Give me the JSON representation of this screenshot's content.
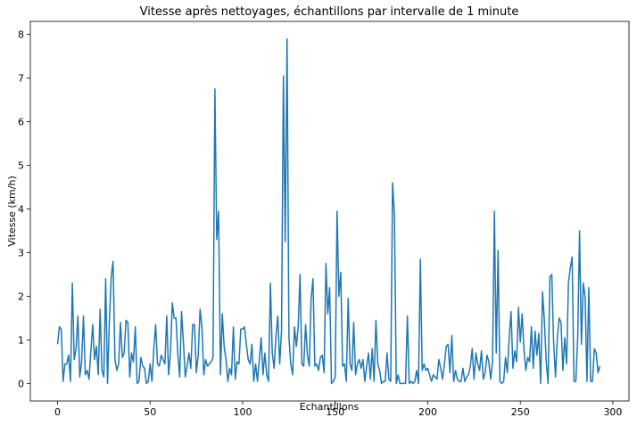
{
  "chart_data": {
    "type": "line",
    "title": "Vitesse après nettoyages, échantillons par intervalle de 1 minute",
    "xlabel": "Echantillons",
    "ylabel": "Vitesse (km/h)",
    "xlim": [
      -14.7,
      308.7
    ],
    "ylim": [
      -0.4,
      8.3
    ],
    "xticks": [
      0,
      50,
      100,
      150,
      200,
      250,
      300
    ],
    "yticks": [
      0,
      1,
      2,
      3,
      4,
      5,
      6,
      7,
      8
    ],
    "grid": false,
    "color": "#1f77b4",
    "series": [
      {
        "values": [
          0.9,
          1.3,
          1.25,
          0.05,
          0.45,
          0.45,
          0.65,
          0.05,
          2.3,
          0.55,
          0.8,
          1.55,
          0.15,
          0.5,
          1.55,
          0.2,
          0.3,
          0.1,
          0.75,
          1.35,
          0.55,
          0.85,
          0.2,
          1.7,
          0.3,
          0.15,
          2.4,
          0.0,
          1.45,
          2.45,
          2.8,
          0.55,
          0.3,
          0.45,
          1.4,
          0.6,
          0.7,
          1.45,
          1.4,
          0.15,
          0.7,
          0.5,
          1.3,
          0.0,
          0.05,
          0.6,
          0.4,
          0.35,
          0.0,
          0.05,
          0.45,
          0.05,
          0.8,
          1.35,
          0.45,
          0.4,
          0.65,
          0.55,
          0.45,
          1.55,
          0.2,
          0.7,
          1.85,
          1.5,
          1.5,
          0.65,
          0.15,
          1.65,
          0.95,
          0.15,
          0.4,
          0.7,
          0.35,
          1.35,
          1.35,
          0.25,
          0.65,
          1.7,
          1.3,
          0.2,
          0.55,
          0.4,
          0.45,
          0.5,
          0.6,
          6.75,
          3.3,
          3.95,
          0.2,
          1.6,
          0.85,
          0.55,
          0.05,
          0.35,
          0.2,
          1.3,
          0.1,
          0.5,
          0.45,
          1.25,
          1.25,
          1.3,
          0.9,
          0.55,
          0.45,
          0.9,
          0.05,
          0.45,
          0.05,
          0.55,
          1.05,
          0.2,
          0.7,
          0.2,
          0.05,
          2.3,
          0.7,
          0.35,
          1.1,
          1.55,
          0.45,
          1.2,
          7.05,
          3.25,
          7.9,
          1.05,
          0.45,
          0.2,
          1.3,
          0.85,
          1.3,
          2.5,
          0.45,
          0.4,
          1.35,
          0.65,
          0.4,
          1.95,
          2.4,
          0.4,
          0.45,
          0.3,
          0.6,
          0.65,
          0.25,
          2.75,
          1.6,
          2.2,
          0.0,
          0.05,
          0.15,
          3.95,
          2.0,
          2.55,
          0.4,
          0.45,
          0.05,
          1.95,
          0.45,
          0.3,
          1.4,
          0.2,
          0.45,
          0.55,
          0.35,
          0.55,
          0.05,
          0.4,
          0.7,
          0.1,
          0.8,
          0.05,
          1.45,
          0.45,
          0.3,
          0.0,
          0.05,
          0.05,
          0.7,
          0.1,
          0.05,
          4.6,
          3.85,
          0.0,
          0.2,
          0.0,
          0.0,
          0.0,
          0.0,
          1.55,
          0.0,
          0.05,
          0.0,
          0.05,
          0.3,
          0.0,
          2.85,
          0.3,
          0.45,
          0.3,
          0.35,
          0.2,
          0.05,
          0.2,
          0.15,
          0.1,
          0.55,
          0.35,
          0.1,
          0.45,
          0.85,
          0.9,
          0.25,
          1.1,
          0.05,
          0.3,
          0.1,
          0.05,
          0.05,
          0.35,
          0.05,
          0.15,
          0.2,
          0.4,
          0.8,
          0.1,
          0.7,
          0.45,
          0.3,
          0.75,
          0.1,
          0.25,
          0.65,
          0.5,
          0.1,
          0.5,
          3.95,
          0.7,
          3.05,
          0.05,
          0.0,
          0.05,
          0.6,
          0.25,
          1.05,
          1.65,
          0.35,
          0.75,
          0.5,
          1.75,
          0.95,
          1.6,
          0.75,
          0.3,
          0.6,
          0.5,
          1.3,
          0.35,
          1.2,
          0.65,
          1.15,
          0.0,
          2.1,
          1.45,
          0.5,
          0.0,
          2.45,
          2.5,
          0.95,
          0.15,
          1.05,
          1.5,
          1.4,
          0.3,
          1.05,
          0.45,
          2.3,
          2.65,
          2.9,
          0.05,
          0.05,
          1.05,
          3.5,
          0.9,
          2.3,
          2.0,
          0.05,
          2.2,
          0.05,
          0.05,
          0.8,
          0.7,
          0.25,
          0.4
        ]
      }
    ]
  }
}
